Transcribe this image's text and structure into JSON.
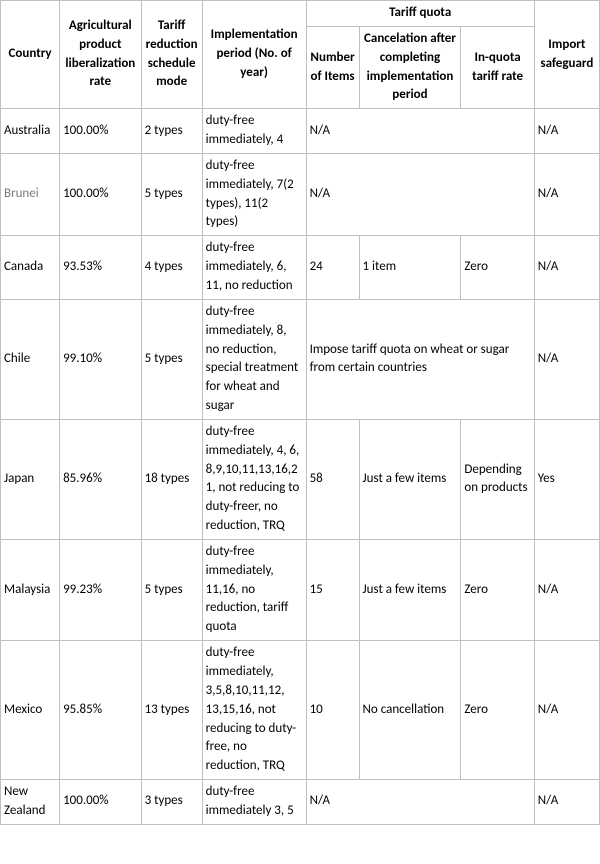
{
  "headers": {
    "country": "Country",
    "lib_rate": "Agricultural product liberalization rate",
    "mode": "Tariff reduction schedule mode",
    "impl": "Implementation period\n(No. of year)",
    "tq_group": "Tariff quota",
    "num_items": "Number of Items",
    "cancel": "Cancelation after completing implementation period",
    "in_quota": "In-quota tariff rate",
    "safeguard": "Import safeguard"
  },
  "rows": [
    {
      "country": "Australia",
      "lib": "100.00%",
      "mode": "2 types",
      "impl": "duty-free immediately, 4",
      "tq_merged": true,
      "tq_text": "N/A",
      "safeguard": "N/A"
    },
    {
      "country": "Brunei",
      "brunei_style": true,
      "lib": "100.00%",
      "mode": "5 types",
      "impl": "duty-free immediately, 7(2 types), 11(2 types)",
      "tq_merged": true,
      "tq_text": "N/A",
      "safeguard": "N/A"
    },
    {
      "country": "Canada",
      "lib": "93.53%",
      "mode": "4 types",
      "impl": "duty-free immediately, 6, 11, no reduction",
      "num_items": "24",
      "cancel": "1 item",
      "in_quota": "Zero",
      "safeguard": "N/A"
    },
    {
      "country": "Chile",
      "lib": "99.10%",
      "mode": "5 types",
      "impl": "duty-free immediately, 8, no reduction, special treatment for wheat and sugar",
      "tq_merged": true,
      "tq_text": "Impose tariff quota on wheat or sugar from certain countries",
      "safeguard": "N/A"
    },
    {
      "country": "Japan",
      "lib": "85.96%",
      "mode": "18 types",
      "impl": "duty-free immediately, 4, 6, 8,9,10,11,13,16,21, not reducing to duty-freer, no reduction, TRQ",
      "num_items": "58",
      "cancel": "Just a few items",
      "in_quota": "Depending on products",
      "safeguard": "Yes"
    },
    {
      "country": "Malaysia",
      "lib": "99.23%",
      "mode": "5 types",
      "impl": "duty-free immediately, 11,16, no reduction, tariff quota",
      "num_items": "15",
      "cancel": "Just a few items",
      "in_quota": "Zero",
      "safeguard": "N/A"
    },
    {
      "country": "Mexico",
      "lib": "95.85%",
      "mode": "13 types",
      "impl": "duty-free immediately, 3,5,8,10,11,12, 13,15,16, not reducing to duty-free, no reduction, TRQ",
      "num_items": "10",
      "cancel": "No cancellation",
      "in_quota": "Zero",
      "safeguard": "N/A"
    },
    {
      "country": "New Zealand",
      "lib": "100.00%",
      "mode": "3 types",
      "impl": "duty-free immediately 3, 5",
      "tq_merged": true,
      "tq_text": "N/A",
      "safeguard": "N/A"
    }
  ]
}
